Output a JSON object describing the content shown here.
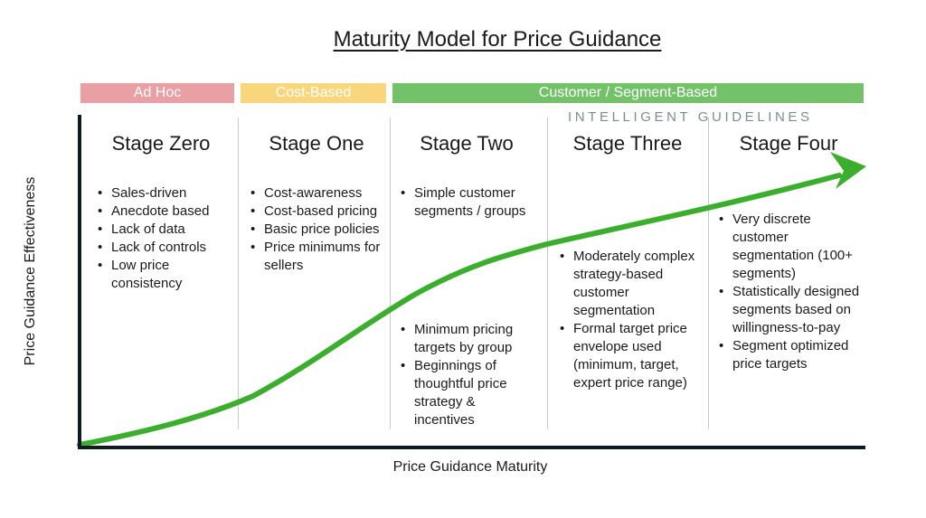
{
  "title": "Maturity Model for Price Guidance",
  "bands": {
    "ad_hoc": "Ad Hoc",
    "cost_based": "Cost-Based",
    "customer_segment": "Customer / Segment-Based"
  },
  "intelligent_guidelines": "INTELLIGENT GUIDELINES",
  "axes": {
    "y_label": "Price Guidance Effectiveness",
    "x_label": "Price Guidance Maturity"
  },
  "stages": [
    {
      "title": "Stage Zero",
      "bullets": [
        "Sales-driven",
        "Anecdote based",
        "Lack of data",
        "Lack of controls",
        "Low price consistency"
      ]
    },
    {
      "title": "Stage One",
      "bullets": [
        "Cost-awareness",
        "Cost-based pricing",
        "Basic price policies",
        "Price minimums for sellers"
      ]
    },
    {
      "title": "Stage Two",
      "bullets_top": [
        "Simple customer segments / groups"
      ],
      "bullets_bottom": [
        "Minimum pricing targets by group",
        "Beginnings of thoughtful price strategy & incentives"
      ]
    },
    {
      "title": "Stage Three",
      "bullets": [
        "Moderately complex strategy-based customer segmentation",
        "Formal target price envelope used (minimum, target, expert price range)"
      ]
    },
    {
      "title": "Stage Four",
      "bullets": [
        "Very discrete customer segmentation (100+ segments)",
        "Statistically designed segments based on willingness-to-pay",
        "Segment optimized price targets"
      ]
    }
  ],
  "colors": {
    "ad_hoc": "#e8a0a4",
    "cost_based": "#f9d67c",
    "customer_segment": "#73c26a",
    "curve": "#3cae2e",
    "axis": "#0f1a24",
    "intelligent_text": "#7f8a93"
  }
}
